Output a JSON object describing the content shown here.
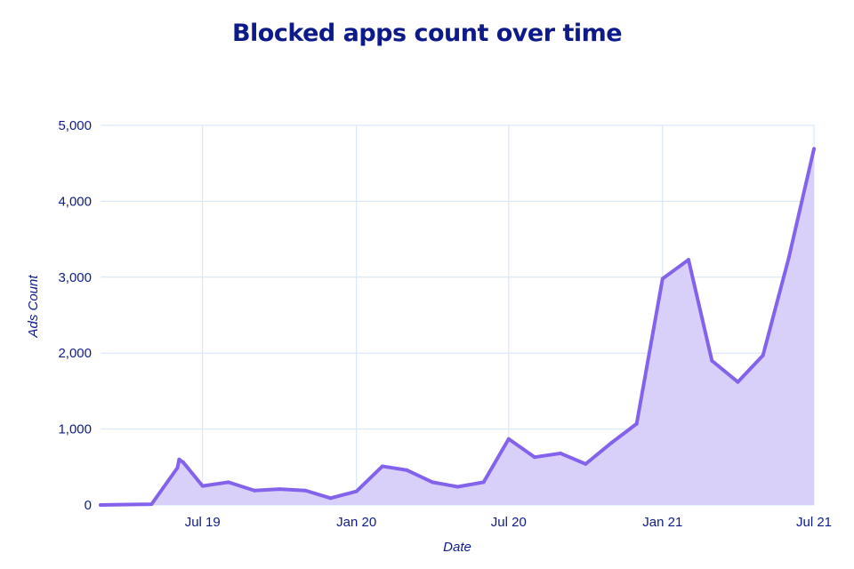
{
  "chart_data": {
    "type": "area",
    "title": "Blocked apps count over time",
    "xlabel": "Date",
    "ylabel": "Ads Count",
    "ylim": [
      0,
      5000
    ],
    "xlim": [
      "2019-03-01",
      "2021-07-01"
    ],
    "y_ticks": [
      0,
      1000,
      2000,
      3000,
      4000,
      5000
    ],
    "y_tick_labels": [
      "0",
      "1,000",
      "2,000",
      "3,000",
      "4,000",
      "5,000"
    ],
    "x_ticks": [
      "2019-07-01",
      "2020-01-01",
      "2020-07-01",
      "2021-01-01",
      "2021-07-01"
    ],
    "x_tick_labels": [
      "Jul 19",
      "Jan 20",
      "Jul 20",
      "Jan 21",
      "Jul 21"
    ],
    "grid": true,
    "series": [
      {
        "x": [
          "2019-03-01",
          "2019-05-01",
          "2019-06-01",
          "2019-06-03",
          "2019-06-08",
          "2019-07-01",
          "2019-08-01",
          "2019-09-01",
          "2019-10-01",
          "2019-11-01",
          "2019-12-01",
          "2020-01-01",
          "2020-02-01",
          "2020-03-01",
          "2020-04-01",
          "2020-05-01",
          "2020-06-01",
          "2020-07-01",
          "2020-08-01",
          "2020-09-01",
          "2020-10-01",
          "2020-11-01",
          "2020-12-01",
          "2021-01-01",
          "2021-02-01",
          "2021-03-01",
          "2021-04-01",
          "2021-05-01",
          "2021-06-01",
          "2021-07-01"
        ],
        "values": [
          0,
          10,
          490,
          600,
          560,
          250,
          300,
          190,
          210,
          190,
          90,
          180,
          510,
          460,
          300,
          240,
          300,
          870,
          630,
          680,
          540,
          820,
          1070,
          2980,
          3230,
          1900,
          1620,
          1970,
          3260,
          4690
        ]
      }
    ],
    "colors": {
      "line": "#8463ec",
      "fill": "#d7cdfa",
      "grid": "#d3e4f5",
      "text": "#0d1a8a"
    }
  }
}
